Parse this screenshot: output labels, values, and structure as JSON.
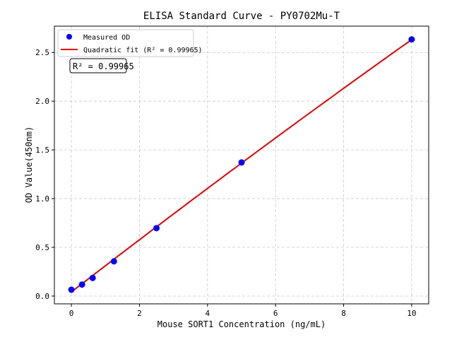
{
  "chart_data": {
    "type": "scatter",
    "title": "ELISA Standard Curve - PY0702Mu-T",
    "xlabel": "Mouse SORT1 Concentration (ng/mL)",
    "ylabel": "OD Value(450nm)",
    "xlim": [
      -0.5,
      10.5
    ],
    "ylim": [
      -0.08,
      2.77
    ],
    "xticks": [
      0,
      2,
      4,
      6,
      8,
      10
    ],
    "yticks": [
      0.0,
      0.5,
      1.0,
      1.5,
      2.0,
      2.5
    ],
    "xtick_labels": [
      "0",
      "2",
      "4",
      "6",
      "8",
      "10"
    ],
    "ytick_labels": [
      "0.0",
      "0.5",
      "1.0",
      "1.5",
      "2.0",
      "2.5"
    ],
    "grid": true,
    "legend_position": "top-left",
    "series": [
      {
        "name": "Measured OD",
        "kind": "scatter",
        "color": "#0000ff",
        "x": [
          0,
          0.3125,
          0.625,
          1.25,
          2.5,
          5,
          10
        ],
        "y": [
          0.065,
          0.118,
          0.186,
          0.356,
          0.697,
          1.371,
          2.634
        ]
      },
      {
        "name": "Quadratic fit (R² = 0.99965)",
        "kind": "line",
        "color": "#e00000",
        "coefficients": {
          "a": -0.0011,
          "b": 0.27,
          "c": 0.042
        },
        "x_range": [
          0,
          10
        ]
      }
    ],
    "annotation": "R² = 0.99965"
  }
}
